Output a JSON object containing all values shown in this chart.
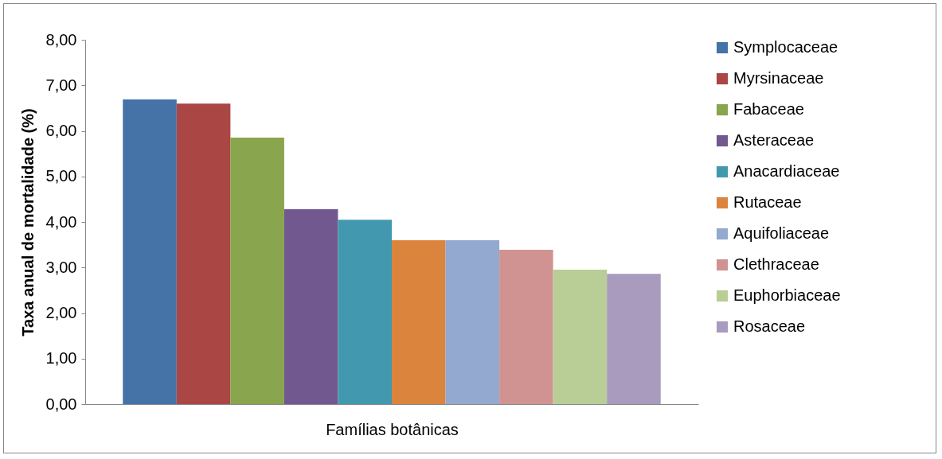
{
  "chart_data": {
    "type": "bar",
    "xlabel": "Famílias botânicas",
    "ylabel": "Taxa anual de mortalidade (%)",
    "categories": [
      null
    ],
    "series": [
      {
        "name": "Symplocaceae",
        "color": "#4572a7",
        "values": [
          6.69
        ]
      },
      {
        "name": "Myrsinaceae",
        "color": "#aa4643",
        "values": [
          6.6
        ]
      },
      {
        "name": "Fabaceae",
        "color": "#89a54e",
        "values": [
          5.85
        ]
      },
      {
        "name": "Asteraceae",
        "color": "#71588f",
        "values": [
          4.28
        ]
      },
      {
        "name": "Anacardiaceae",
        "color": "#4198af",
        "values": [
          4.05
        ]
      },
      {
        "name": "Rutaceae",
        "color": "#db843d",
        "values": [
          3.6
        ]
      },
      {
        "name": "Aquifoliaceae",
        "color": "#93a9cf",
        "values": [
          3.6
        ]
      },
      {
        "name": "Clethraceae",
        "color": "#d19392",
        "values": [
          3.39
        ]
      },
      {
        "name": "Euphorbiaceae",
        "color": "#b9cd96",
        "values": [
          2.95
        ]
      },
      {
        "name": "Rosaceae",
        "color": "#a99bbd",
        "values": [
          2.86
        ]
      }
    ],
    "ylim": [
      0,
      8
    ],
    "yticks": [
      {
        "value": 0,
        "label": "0,00"
      },
      {
        "value": 1,
        "label": "1,00"
      },
      {
        "value": 2,
        "label": "2,00"
      },
      {
        "value": 3,
        "label": "3,00"
      },
      {
        "value": 4,
        "label": "4,00"
      },
      {
        "value": 5,
        "label": "5,00"
      },
      {
        "value": 6,
        "label": "6,00"
      },
      {
        "value": 7,
        "label": "7,00"
      },
      {
        "value": 8,
        "label": "8,00"
      }
    ],
    "grid": false,
    "legend": "right"
  }
}
